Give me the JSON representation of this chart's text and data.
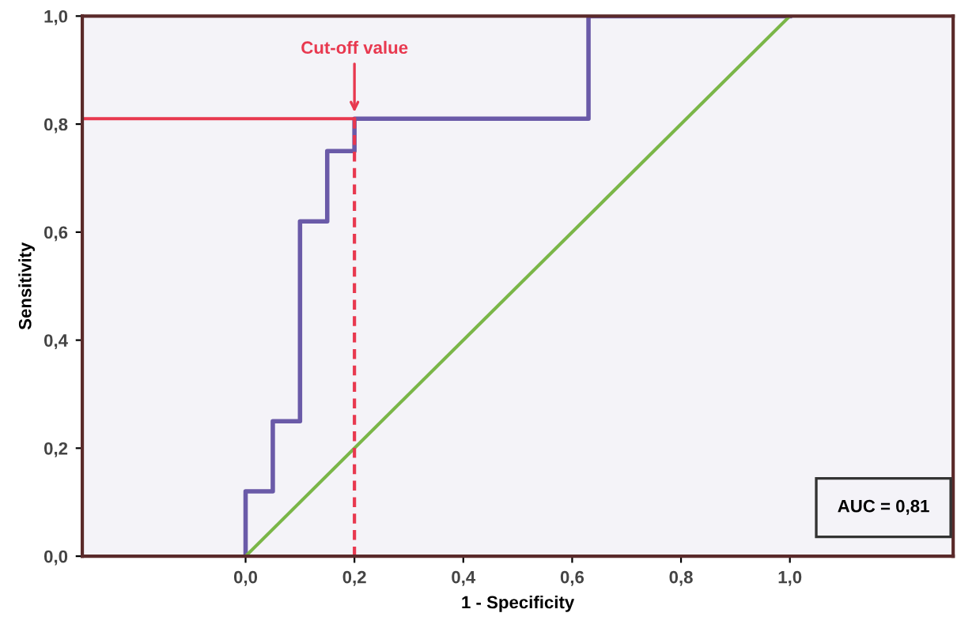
{
  "chart_data": {
    "type": "line",
    "xlabel": "1 - Specificity",
    "ylabel": "Sensitivity",
    "xlim": [
      -0.3,
      1.3
    ],
    "ylim": [
      0,
      1.0
    ],
    "xticks": [
      {
        "value": 0,
        "label": "0,0"
      },
      {
        "value": 0.2,
        "label": "0,2"
      },
      {
        "value": 0.4,
        "label": "0,4"
      },
      {
        "value": 0.6,
        "label": "0,6"
      },
      {
        "value": 0.8,
        "label": "0,8"
      },
      {
        "value": 1.0,
        "label": "1,0"
      }
    ],
    "yticks": [
      {
        "value": 0,
        "label": "0,0"
      },
      {
        "value": 0.2,
        "label": "0,2"
      },
      {
        "value": 0.4,
        "label": "0,4"
      },
      {
        "value": 0.6,
        "label": "0,6"
      },
      {
        "value": 0.8,
        "label": "0,8"
      },
      {
        "value": 1.0,
        "label": "1,0"
      }
    ],
    "grid": false,
    "legend": false,
    "marker": "none",
    "series": [
      {
        "type": "step",
        "color": "#6a5aa8",
        "x": [
          0,
          0,
          0.05,
          0.05,
          0.1,
          0.1,
          0.15,
          0.15,
          0.2,
          0.2,
          0.63,
          0.63,
          1.0
        ],
        "values": [
          0,
          0.12,
          0.12,
          0.25,
          0.25,
          0.62,
          0.62,
          0.75,
          0.75,
          0.81,
          0.81,
          1.0,
          1.0
        ]
      },
      {
        "color": "#7ab648",
        "x": [
          0,
          1.0
        ],
        "values": [
          0,
          1.0
        ]
      },
      {
        "color": "#e8384f",
        "line_style": "solid",
        "x": [
          -0.3,
          0.2
        ],
        "values": [
          0.81,
          0.81
        ]
      },
      {
        "color": "#e8384f",
        "line_style": "dashed",
        "x": [
          0.2,
          0.2
        ],
        "values": [
          0.81,
          0
        ]
      }
    ],
    "annotations": [
      {
        "text": "Cut-off value",
        "x": 0.2,
        "y": 0.81
      },
      "AUC = 0,81"
    ]
  }
}
